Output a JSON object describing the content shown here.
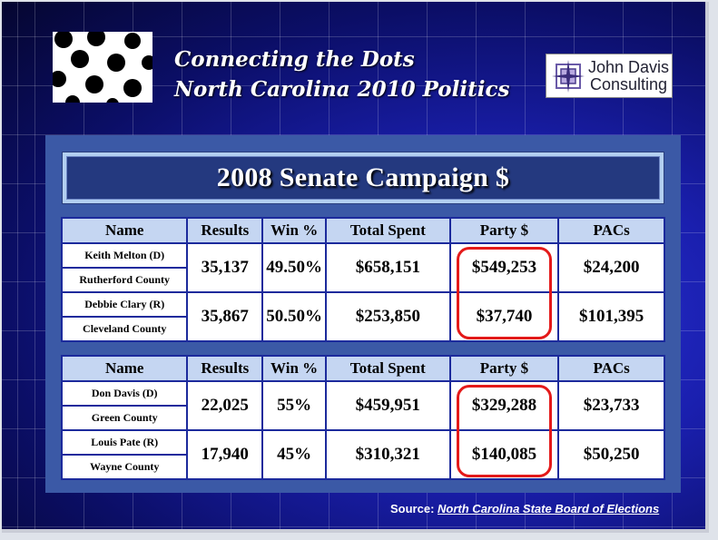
{
  "title": {
    "line1": "Connecting the Dots",
    "line2": "North Carolina 2010 Politics"
  },
  "logo": {
    "icon": "compass-rose-icon",
    "line1": "John Davis",
    "line2": "Consulting"
  },
  "heading": "2008 Senate Campaign $",
  "columns": [
    "Name",
    "Results",
    "Win %",
    "Total Spent",
    "Party $",
    "PACs"
  ],
  "race1": [
    {
      "name": "Keith Melton (D)",
      "county": "Rutherford County",
      "results": "35,137",
      "win": "49.50%",
      "total": "$658,151",
      "party": "$549,253",
      "pacs": "$24,200"
    },
    {
      "name": "Debbie Clary (R)",
      "county": "Cleveland County",
      "results": "35,867",
      "win": "50.50%",
      "total": "$253,850",
      "party": "$37,740",
      "pacs": "$101,395"
    }
  ],
  "race2": [
    {
      "name": "Don  Davis (D)",
      "county": "Green County",
      "results": "22,025",
      "win": "55%",
      "total": "$459,951",
      "party": "$329,288",
      "pacs": "$23,733"
    },
    {
      "name": "Louis Pate (R)",
      "county": "Wayne County",
      "results": "17,940",
      "win": "45%",
      "total": "$310,321",
      "party": "$140,085",
      "pacs": "$50,250"
    }
  ],
  "source": {
    "label": "Source:",
    "link": "North Carolina State Board of Elections"
  },
  "colors": {
    "highlight": "#e41a1a",
    "header_bg": "#c5d6f2",
    "border": "#1c2a9c"
  }
}
